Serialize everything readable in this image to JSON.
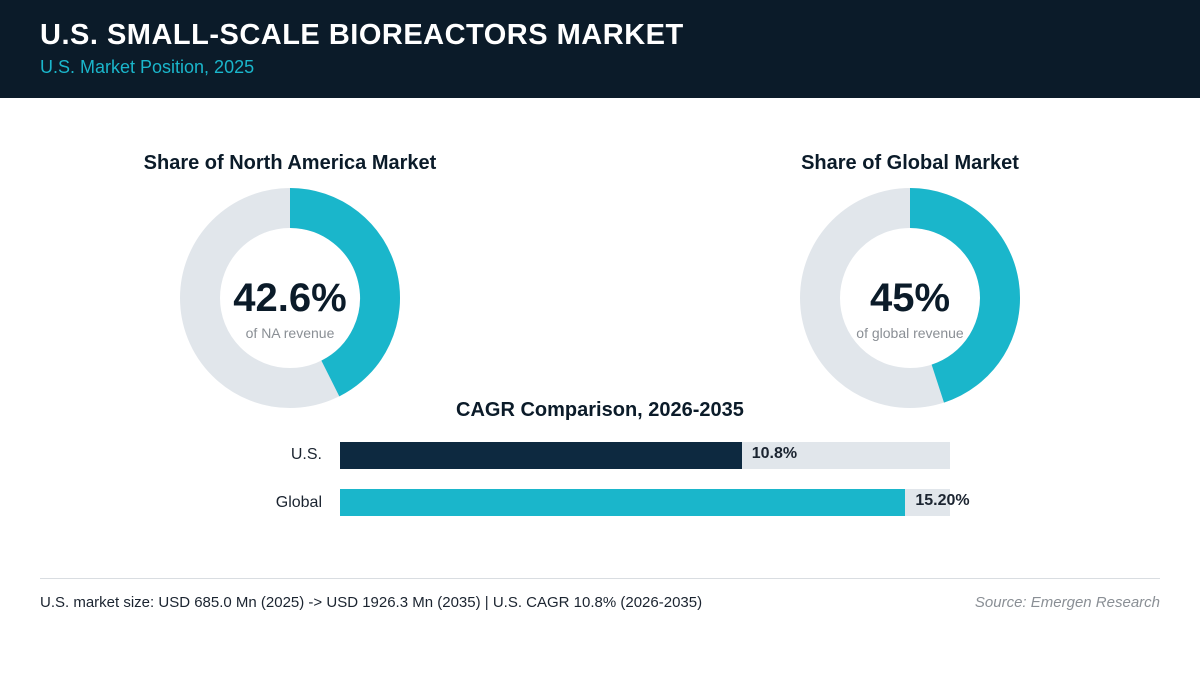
{
  "header": {
    "title": "U.S. SMALL-SCALE BIOREACTORS MARKET",
    "subtitle": "U.S. Market Position, 2025"
  },
  "colors": {
    "header_bg": "#0b1b29",
    "accent": "#1ab6cb",
    "us_bar": "#0d2940",
    "track": "#e1e6eb"
  },
  "chart_data": [
    {
      "type": "pie",
      "title": "Share of North America Market",
      "center_value": "42.6%",
      "center_caption": "of NA revenue",
      "value": 42.6,
      "total": 100
    },
    {
      "type": "pie",
      "title": "Share of Global Market",
      "center_value": "45%",
      "center_caption": "of global revenue",
      "value": 45,
      "total": 100
    },
    {
      "type": "bar",
      "orientation": "horizontal",
      "title": "CAGR Comparison, 2026-2035",
      "categories": [
        "U.S.",
        "Global"
      ],
      "values": [
        10.8,
        15.2
      ],
      "value_labels": [
        "10.8%",
        "15.20%"
      ],
      "xlim": [
        0,
        16.4
      ]
    }
  ],
  "footer": {
    "note": "U.S. market size: USD 685.0 Mn (2025) -> USD 1926.3 Mn (2035)  |  U.S. CAGR 10.8% (2026-2035)",
    "source": "Source: Emergen Research"
  }
}
